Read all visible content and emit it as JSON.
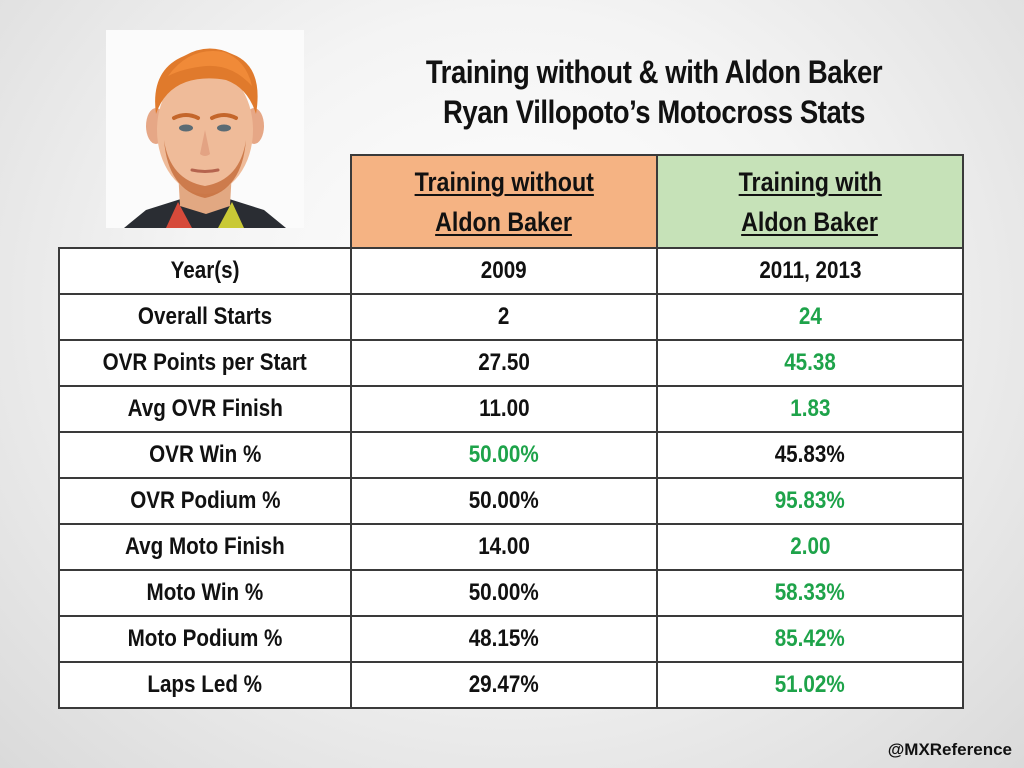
{
  "title": {
    "line1": "Training without & with Aldon Baker",
    "line2": "Ryan Villopoto’s Motocross Stats"
  },
  "headers": {
    "without": [
      "Training without",
      "Aldon Baker"
    ],
    "with": [
      "Training with",
      "Aldon Baker"
    ]
  },
  "colors": {
    "without_header": "#f5b383",
    "with_header": "#c6e2b8",
    "better_value": "#1ea34a"
  },
  "rows": [
    {
      "label": "Year(s)",
      "without": "2009",
      "with": "2011, 2013",
      "better": "none"
    },
    {
      "label": "Overall Starts",
      "without": "2",
      "with": "24",
      "better": "with"
    },
    {
      "label": "OVR Points per Start",
      "without": "27.50",
      "with": "45.38",
      "better": "with"
    },
    {
      "label": "Avg OVR Finish",
      "without": "11.00",
      "with": "1.83",
      "better": "with"
    },
    {
      "label": "OVR Win %",
      "without": "50.00%",
      "with": "45.83%",
      "better": "without"
    },
    {
      "label": "OVR Podium %",
      "without": "50.00%",
      "with": "95.83%",
      "better": "with"
    },
    {
      "label": "Avg Moto Finish",
      "without": "14.00",
      "with": "2.00",
      "better": "with"
    },
    {
      "label": "Moto Win %",
      "without": "50.00%",
      "with": "58.33%",
      "better": "with"
    },
    {
      "label": "Moto Podium %",
      "without": "48.15%",
      "with": "85.42%",
      "better": "with"
    },
    {
      "label": "Laps Led %",
      "without": "29.47%",
      "with": "51.02%",
      "better": "with"
    }
  ],
  "credit": "@MXReference"
}
